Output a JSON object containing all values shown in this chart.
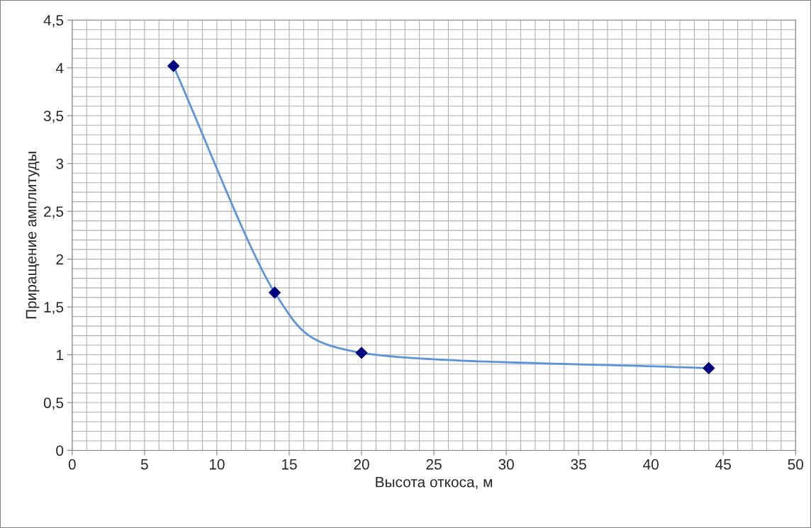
{
  "chart_data": {
    "type": "scatter",
    "xlabel": "Высота откоса, м",
    "ylabel": "Приращение амплитуды",
    "x": [
      7,
      14,
      20,
      44
    ],
    "series": [
      {
        "type": "line",
        "marker": "none",
        "color": "#5b93dc",
        "values": [
          4.02,
          1.65,
          1.02,
          0.86
        ]
      },
      {
        "color": "#000080",
        "values": [
          4.02,
          1.65,
          1.02,
          0.86
        ]
      }
    ],
    "marker": "diamond",
    "line_style": "solid",
    "grid": true,
    "xlim": [
      0,
      50
    ],
    "xticks": [
      0,
      5,
      10,
      15,
      20,
      25,
      30,
      35,
      40,
      45,
      50
    ],
    "ylim": [
      0,
      4.5
    ],
    "yticks": [
      0,
      {
        "value": 0.5,
        "label": "0,5"
      },
      1,
      {
        "value": 1.5,
        "label": "1,5"
      },
      2,
      {
        "value": 2.5,
        "label": "2,5"
      },
      3,
      {
        "value": 3.5,
        "label": "3,5"
      },
      4,
      {
        "value": 4.5,
        "label": "4,5"
      }
    ]
  }
}
